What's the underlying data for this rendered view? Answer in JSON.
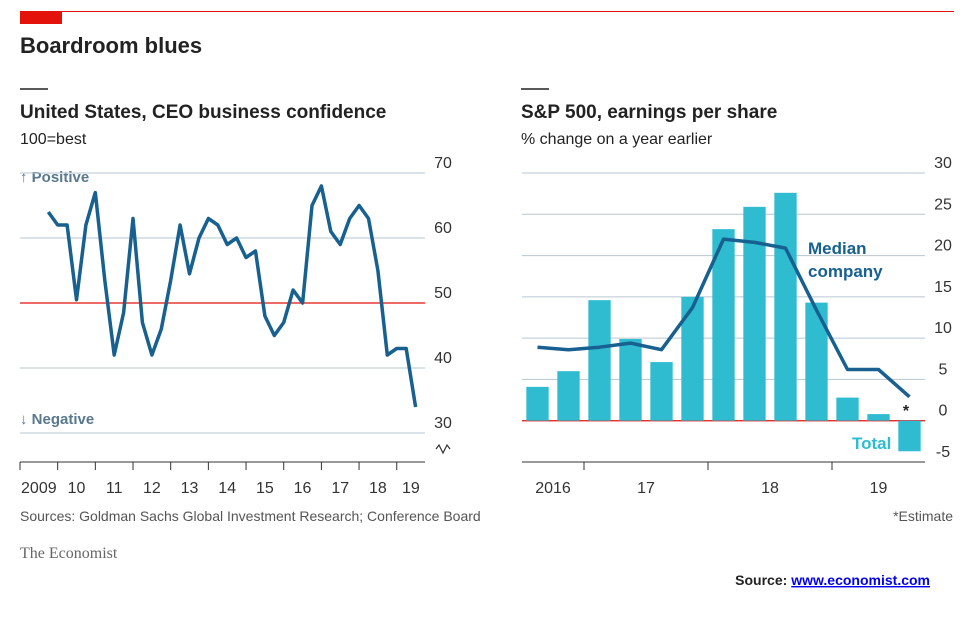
{
  "title": "Boardroom blues",
  "source": "Sources: Goldman Sachs Global Investment Research; Conference Board",
  "footnote": "*Estimate",
  "brand": "The Economist",
  "credit": {
    "label": "Source:",
    "link": "www.economist.com"
  },
  "chart_data": [
    {
      "type": "line",
      "title": "United States, CEO business confidence",
      "subtitle": "100=best",
      "annotations": [
        "↑ Positive",
        "↓ Negative"
      ],
      "x": [
        2009.75,
        2010,
        2010.25,
        2010.5,
        2010.75,
        2011,
        2011.25,
        2011.5,
        2011.75,
        2012,
        2012.25,
        2012.5,
        2012.75,
        2013,
        2013.25,
        2013.5,
        2013.75,
        2014,
        2014.25,
        2014.5,
        2014.75,
        2015,
        2015.25,
        2015.5,
        2015.75,
        2016,
        2016.25,
        2016.5,
        2016.75,
        2017,
        2017.25,
        2017.5,
        2017.75,
        2018,
        2018.25,
        2018.5,
        2018.75,
        2019,
        2019.25,
        2019.5
      ],
      "series": [
        {
          "color": "#17608f",
          "values": [
            64,
            62,
            62,
            50.5,
            62,
            67,
            53.5,
            42,
            48.5,
            63,
            47,
            42,
            46,
            53.5,
            62,
            54.5,
            60,
            63,
            62,
            59,
            60,
            57,
            58,
            48,
            45,
            47,
            52,
            50,
            65,
            68,
            61,
            59,
            63,
            65,
            63,
            55,
            42,
            43,
            43,
            34
          ]
        }
      ],
      "xlim": [
        2009,
        2019.75
      ],
      "xticks": [
        2009,
        {
          "value": 2010,
          "label": "10"
        },
        {
          "value": 2011,
          "label": "11"
        },
        {
          "value": 2012,
          "label": "12"
        },
        {
          "value": 2013,
          "label": "13"
        },
        {
          "value": 2014,
          "label": "14"
        },
        {
          "value": 2015,
          "label": "15"
        },
        {
          "value": 2016,
          "label": "16"
        },
        {
          "value": 2017,
          "label": "17"
        },
        {
          "value": 2018,
          "label": "18"
        },
        {
          "value": 2019,
          "label": "19"
        }
      ],
      "ylim": [
        30,
        70
      ],
      "yticks": [
        70,
        60,
        50,
        40,
        30
      ],
      "baseline": 50,
      "baseline_color": "#e3120b",
      "grid": true
    },
    {
      "type": "combo",
      "title": "S&P 500, earnings per share",
      "subtitle": "% change on a year earlier",
      "annotations": [
        "*"
      ],
      "x": [
        2016.5,
        2016.75,
        2017,
        2017.25,
        2017.5,
        2017.75,
        2018,
        2018.25,
        2018.5,
        2018.75,
        2019,
        2019.25,
        2019.5
      ],
      "series": [
        {
          "name": "Total",
          "mark": "bar",
          "color": "#2fbcd0",
          "values": [
            4.1,
            6.0,
            14.6,
            9.9,
            7.1,
            15.0,
            23.2,
            25.9,
            27.6,
            14.3,
            2.8,
            0.8,
            -3.7
          ]
        },
        {
          "name": "Median company",
          "mark": "line",
          "color": "#17608f",
          "values": [
            8.9,
            8.6,
            8.9,
            9.4,
            8.6,
            13.7,
            22.0,
            21.6,
            20.9,
            13.4,
            6.2,
            6.2,
            2.9
          ]
        }
      ],
      "xlim": [
        2016.5,
        2019.75
      ],
      "xticks": [
        2016,
        {
          "value": 2017,
          "label": "17"
        },
        {
          "value": 2018,
          "label": "18"
        },
        {
          "value": 2019,
          "label": "19"
        }
      ],
      "ylim": [
        -5,
        30
      ],
      "yticks": [
        30,
        25,
        20,
        15,
        10,
        5,
        0,
        -5
      ],
      "baseline": 0,
      "baseline_color": "#e3120b",
      "grid": true
    }
  ]
}
